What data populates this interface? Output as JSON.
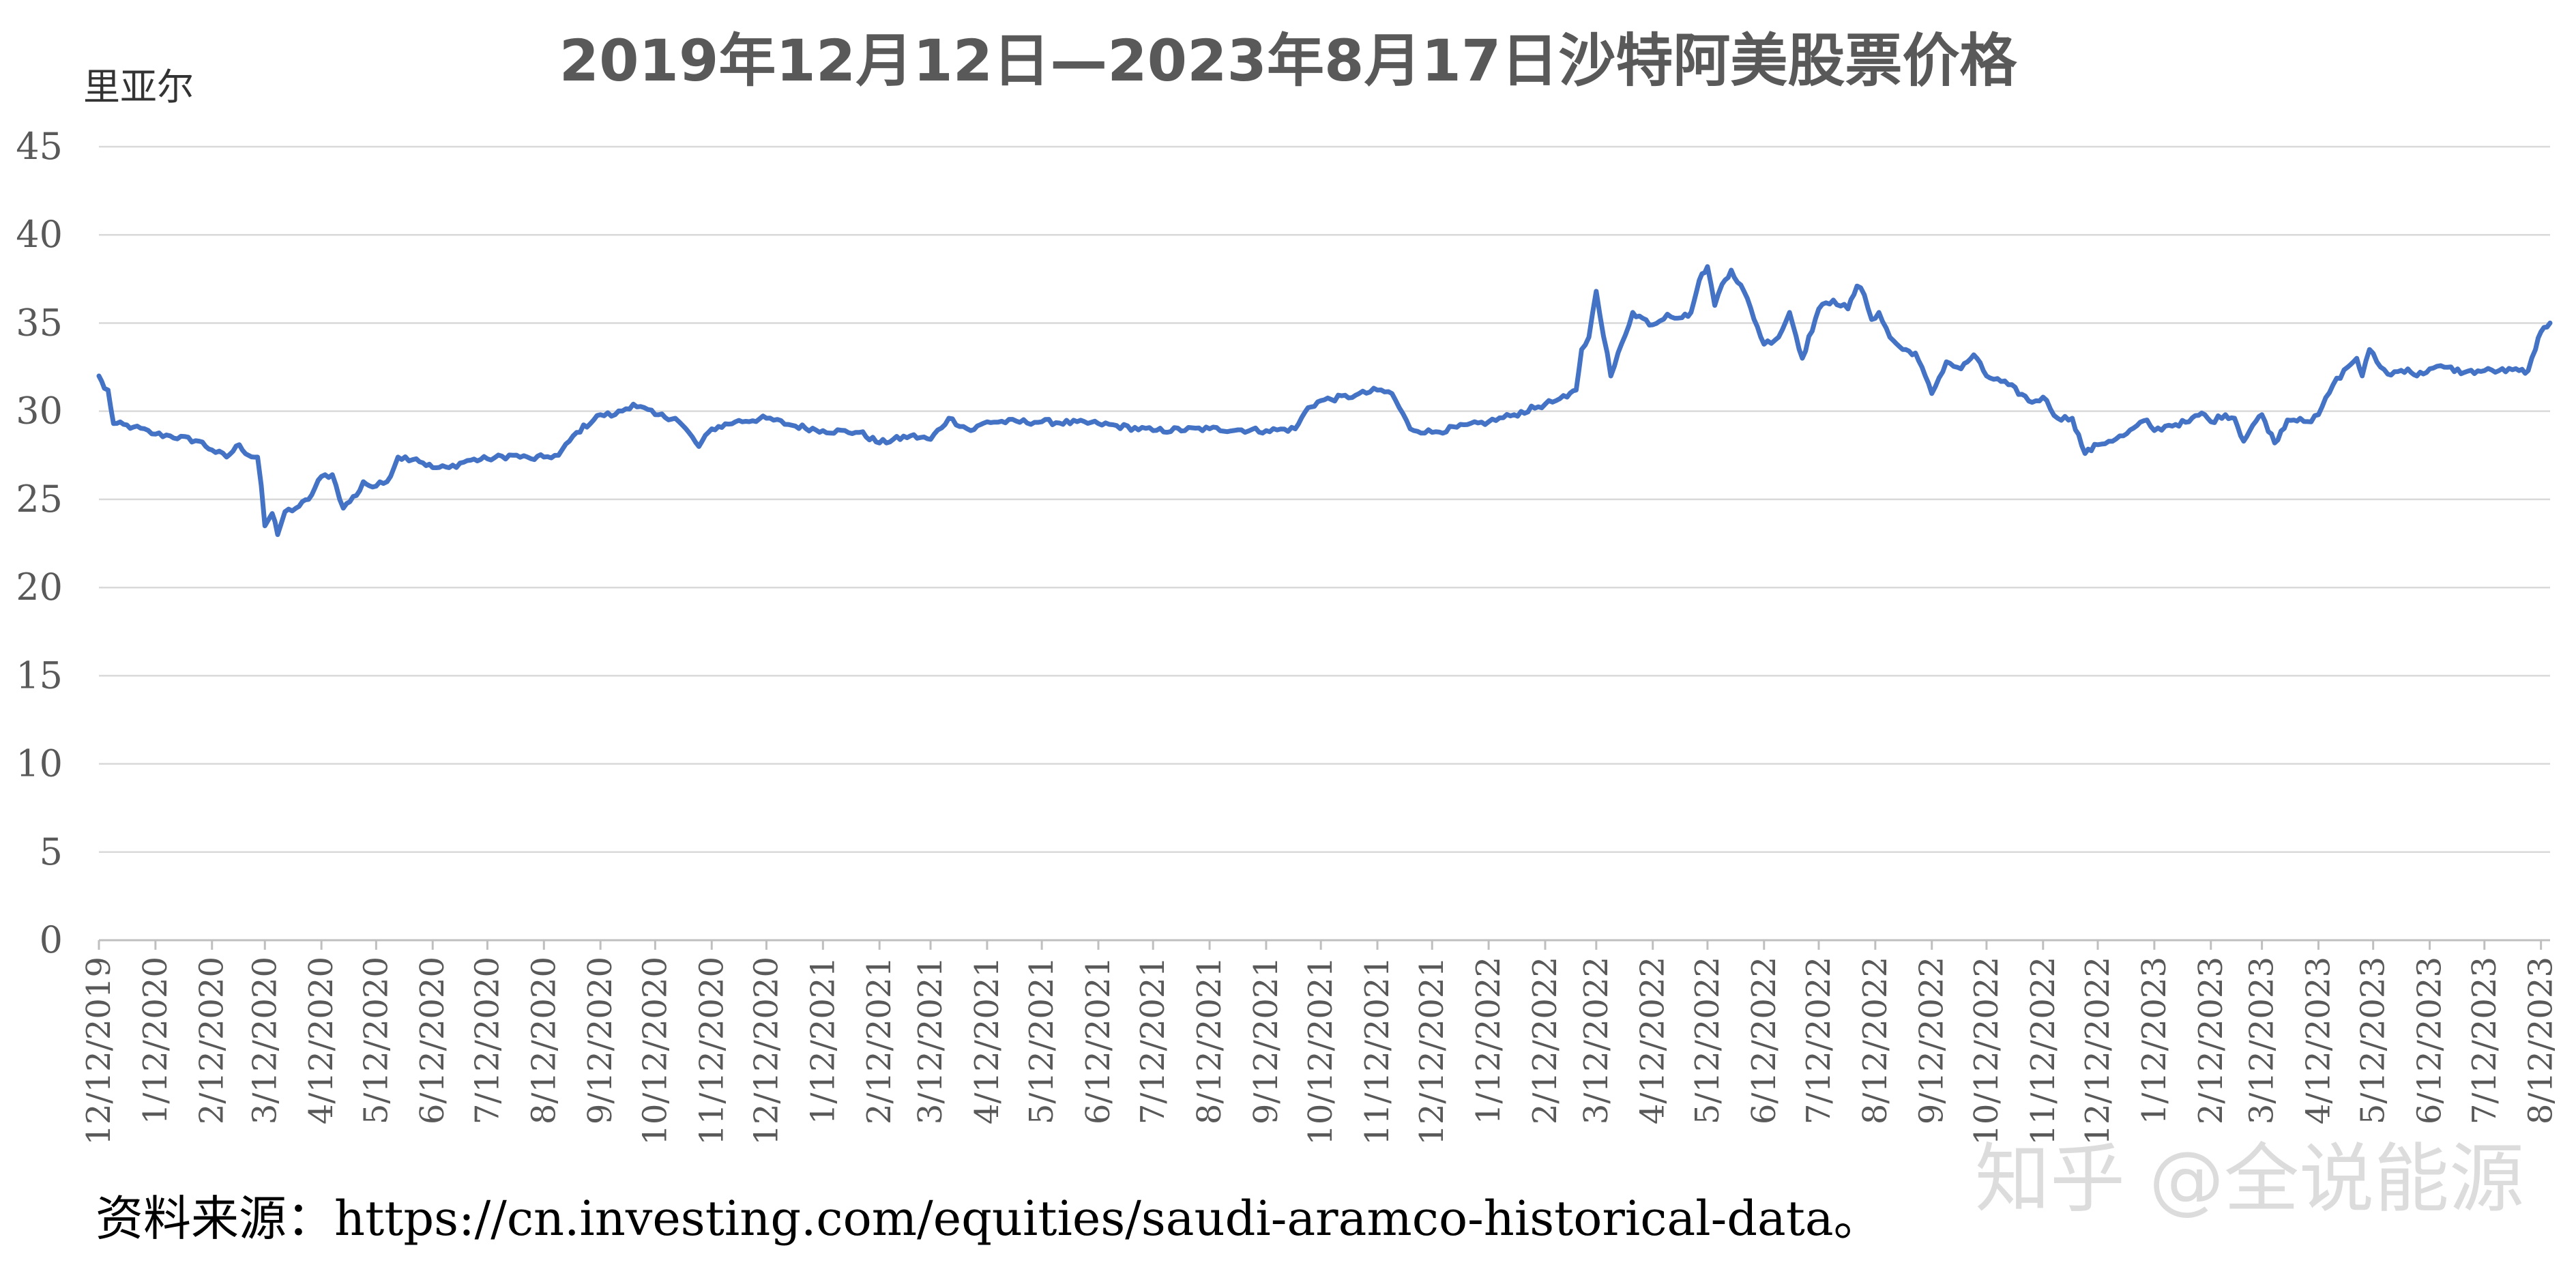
{
  "chart_data": {
    "type": "line",
    "title": "2019年12月12日—2023年8月17日沙特阿美股票价格",
    "xlabel": "",
    "ylabel": "里亚尔",
    "ylim": [
      0,
      45
    ],
    "yticks": [
      0,
      5,
      10,
      15,
      20,
      25,
      30,
      35,
      40,
      45
    ],
    "grid": true,
    "legend": "none",
    "x_tick_labels": [
      "12/12/2019",
      "1/12/2020",
      "2/12/2020",
      "3/12/2020",
      "4/12/2020",
      "5/12/2020",
      "6/12/2020",
      "7/12/2020",
      "8/12/2020",
      "9/12/2020",
      "10/12/2020",
      "11/12/2020",
      "12/12/2020",
      "1/12/2021",
      "2/12/2021",
      "3/12/2021",
      "4/12/2021",
      "5/12/2021",
      "6/12/2021",
      "7/12/2021",
      "8/12/2021",
      "9/12/2021",
      "10/12/2021",
      "11/12/2021",
      "12/12/2021",
      "1/12/2022",
      "2/12/2022",
      "3/12/2022",
      "4/12/2022",
      "5/12/2022",
      "6/12/2022",
      "7/12/2022",
      "8/12/2022",
      "9/12/2022",
      "10/12/2022",
      "11/12/2022",
      "12/12/2022",
      "1/12/2023",
      "2/12/2023",
      "3/12/2023",
      "4/12/2023",
      "5/12/2023",
      "6/12/2023",
      "7/12/2023",
      "8/12/2023"
    ],
    "x_range": [
      "2019-12-12",
      "2023-08-17"
    ],
    "series": [
      {
        "color": "#4472C4",
        "x": [
          "2019-12-12",
          "2019-12-15",
          "2019-12-17",
          "2019-12-20",
          "2019-12-31",
          "2020-01-12",
          "2020-01-20",
          "2020-02-05",
          "2020-02-12",
          "2020-02-20",
          "2020-02-27",
          "2020-03-03",
          "2020-03-08",
          "2020-03-10",
          "2020-03-12",
          "2020-03-16",
          "2020-03-19",
          "2020-03-23",
          "2020-03-29",
          "2020-04-05",
          "2020-04-12",
          "2020-04-18",
          "2020-04-24",
          "2020-05-03",
          "2020-05-05",
          "2020-05-10",
          "2020-05-18",
          "2020-05-24",
          "2020-06-03",
          "2020-06-12",
          "2020-06-21",
          "2020-07-01",
          "2020-07-12",
          "2020-07-26",
          "2020-08-05",
          "2020-08-12",
          "2020-08-20",
          "2020-08-30",
          "2020-09-12",
          "2020-09-20",
          "2020-09-30",
          "2020-10-12",
          "2020-10-23",
          "2020-10-27",
          "2020-11-05",
          "2020-11-12",
          "2020-11-25",
          "2020-12-12",
          "2020-12-26",
          "2021-01-12",
          "2021-02-01",
          "2021-02-12",
          "2021-03-01",
          "2021-03-12",
          "2021-03-22",
          "2021-04-03",
          "2021-04-12",
          "2021-05-12",
          "2021-06-12",
          "2021-07-12",
          "2021-08-12",
          "2021-09-12",
          "2021-09-28",
          "2021-10-05",
          "2021-10-12",
          "2021-10-31",
          "2021-11-12",
          "2021-11-20",
          "2021-11-30",
          "2021-12-12",
          "2022-01-12",
          "2022-01-26",
          "2022-02-12",
          "2022-02-18",
          "2022-02-24",
          "2022-03-01",
          "2022-03-04",
          "2022-03-08",
          "2022-03-12",
          "2022-03-20",
          "2022-04-01",
          "2022-04-12",
          "2022-04-20",
          "2022-04-28",
          "2022-05-03",
          "2022-05-06",
          "2022-05-09",
          "2022-05-12",
          "2022-05-16",
          "2022-05-20",
          "2022-05-25",
          "2022-06-01",
          "2022-06-12",
          "2022-06-20",
          "2022-06-26",
          "2022-07-03",
          "2022-07-12",
          "2022-07-20",
          "2022-07-28",
          "2022-08-02",
          "2022-08-06",
          "2022-08-10",
          "2022-08-14",
          "2022-08-20",
          "2022-08-27",
          "2022-09-03",
          "2022-09-12",
          "2022-09-20",
          "2022-09-28",
          "2022-10-05",
          "2022-10-12",
          "2022-10-24",
          "2022-11-06",
          "2022-11-12",
          "2022-11-20",
          "2022-11-28",
          "2022-12-05",
          "2022-12-12",
          "2022-12-26",
          "2023-01-08",
          "2023-01-12",
          "2023-01-20",
          "2023-01-31",
          "2023-02-07",
          "2023-02-12",
          "2023-02-20",
          "2023-02-25",
          "2023-03-02",
          "2023-03-07",
          "2023-03-12",
          "2023-03-19",
          "2023-03-26",
          "2023-04-02",
          "2023-04-08",
          "2023-04-12",
          "2023-04-20",
          "2023-04-28",
          "2023-05-03",
          "2023-05-06",
          "2023-05-10",
          "2023-05-14",
          "2023-05-20",
          "2023-05-31",
          "2023-06-05",
          "2023-06-12",
          "2023-06-20",
          "2023-07-01",
          "2023-07-12",
          "2023-07-20",
          "2023-07-31",
          "2023-08-05",
          "2023-08-09",
          "2023-08-12",
          "2023-08-17"
        ],
        "values": [
          32.0,
          31.3,
          31.2,
          29.3,
          29.1,
          28.7,
          28.6,
          28.3,
          27.8,
          27.4,
          28.1,
          27.5,
          27.4,
          25.8,
          23.5,
          24.2,
          23.0,
          24.3,
          24.5,
          25.0,
          26.3,
          26.4,
          24.5,
          25.5,
          26.0,
          25.7,
          26.0,
          27.4,
          27.3,
          26.8,
          26.8,
          27.2,
          27.3,
          27.5,
          27.3,
          27.4,
          27.5,
          28.8,
          29.8,
          29.8,
          30.4,
          29.8,
          29.6,
          29.2,
          28.0,
          29.0,
          29.4,
          29.6,
          29.2,
          28.9,
          28.8,
          28.2,
          28.6,
          28.4,
          29.6,
          28.9,
          29.4,
          29.4,
          29.3,
          28.9,
          29.0,
          28.9,
          29.0,
          30.2,
          30.6,
          30.9,
          31.2,
          31.0,
          29.0,
          28.8,
          29.4,
          29.8,
          30.4,
          30.6,
          30.8,
          31.2,
          33.5,
          34.2,
          36.8,
          32.0,
          35.6,
          34.9,
          35.5,
          35.3,
          35.6,
          36.8,
          37.8,
          38.2,
          36.0,
          37.2,
          38.0,
          36.8,
          33.8,
          34.2,
          35.6,
          33.0,
          35.8,
          36.3,
          35.8,
          37.1,
          36.6,
          35.2,
          35.6,
          34.2,
          33.5,
          33.3,
          31.0,
          32.8,
          32.4,
          33.2,
          32.0,
          31.5,
          30.5,
          30.8,
          29.6,
          29.6,
          27.6,
          28.1,
          28.6,
          29.5,
          28.9,
          29.2,
          29.4,
          29.9,
          29.4,
          29.8,
          29.6,
          28.3,
          29.2,
          29.8,
          28.2,
          29.5,
          29.6,
          29.4,
          29.8,
          31.5,
          32.5,
          33.0,
          32.0,
          33.5,
          32.8,
          32.1,
          32.4,
          32.0,
          32.4,
          32.5,
          32.2,
          32.3,
          32.3,
          32.3,
          32.3,
          33.5,
          34.5,
          35.0
        ]
      }
    ]
  },
  "source": "资料来源：https://cn.investing.com/equities/saudi-aramco-historical-data。",
  "watermark": "知乎 @全说能源"
}
